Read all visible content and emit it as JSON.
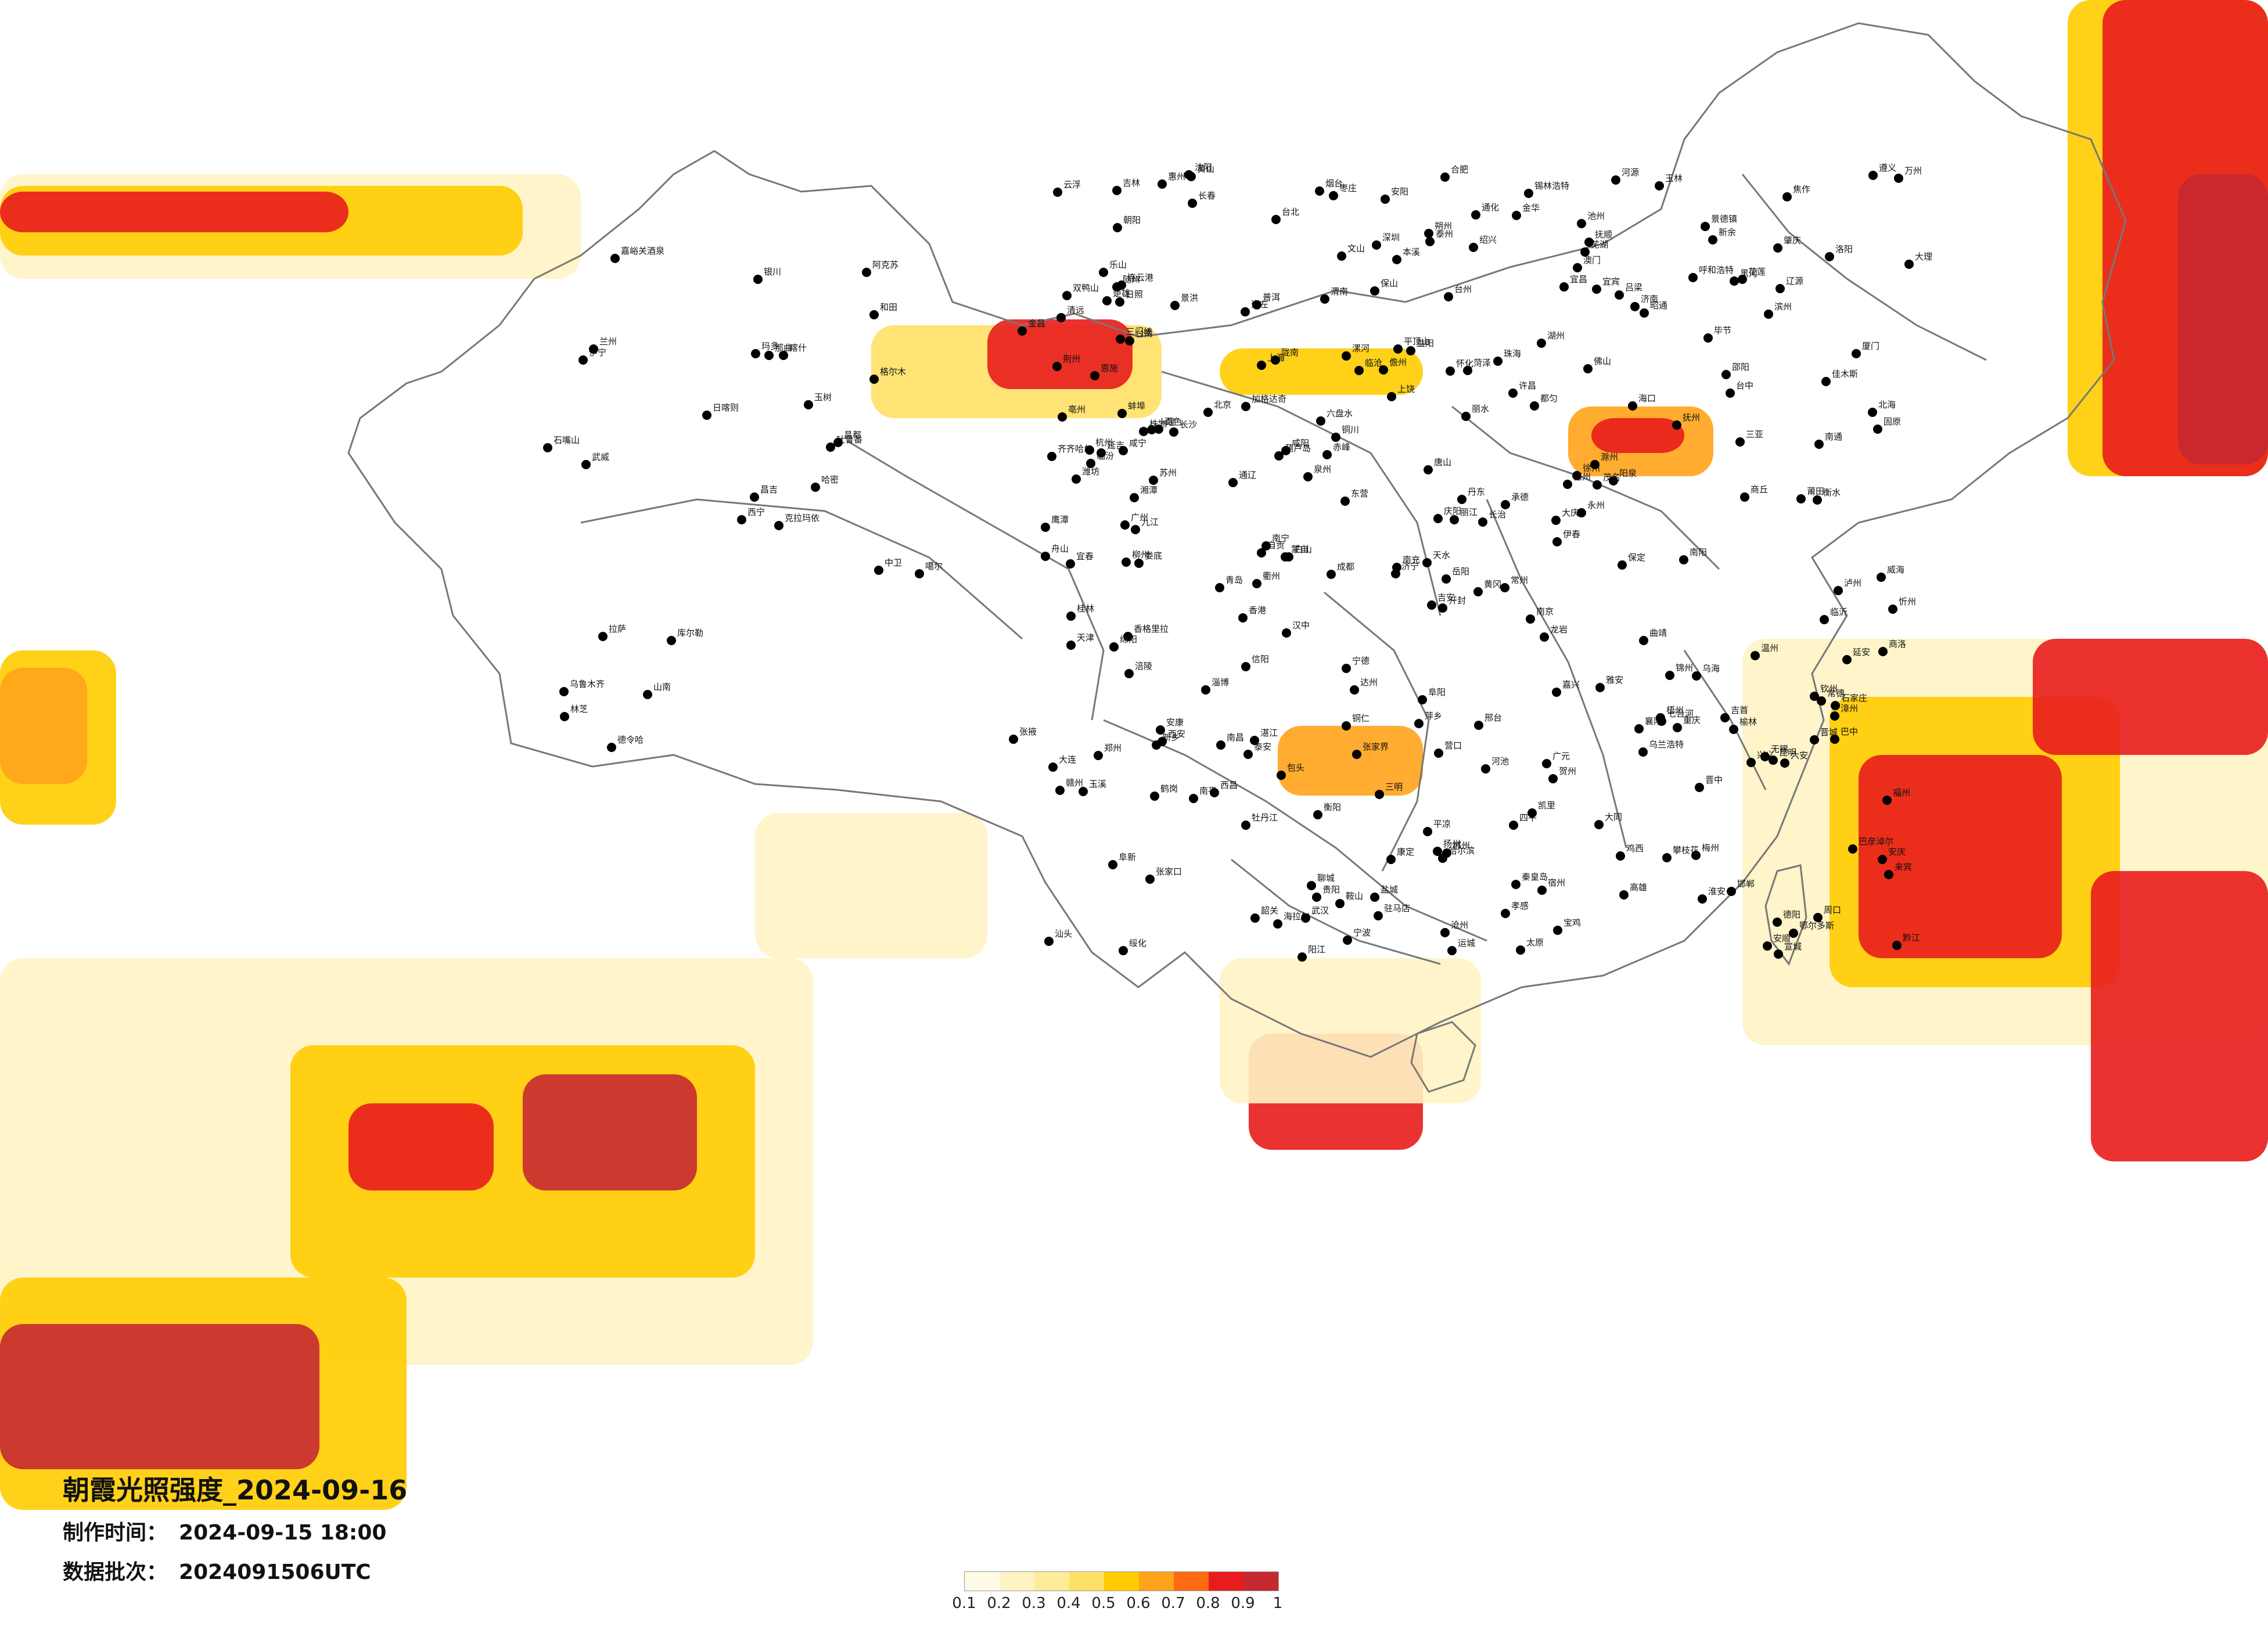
{
  "title": "朝霞光照强度_2024-09-16",
  "meta": {
    "made_label": "制作时间：",
    "made_value": "2024-09-15 18:00",
    "batch_label": "数据批次：",
    "batch_value": "2024091506UTC"
  },
  "legend": {
    "colors": [
      "#fffbe6",
      "#fff3c4",
      "#ffec99",
      "#ffe066",
      "#ffcc00",
      "#ffa31a",
      "#ff6a13",
      "#e81c1c",
      "#c62832"
    ],
    "ticks": [
      "0.1",
      "0.2",
      "0.3",
      "0.4",
      "0.5",
      "0.6",
      "0.7",
      "0.8",
      "0.9",
      "1"
    ]
  },
  "cities": [
    {
      "name": "克拉玛依"
    },
    {
      "name": "伊宁"
    },
    {
      "name": "昌吉"
    },
    {
      "name": "乌鲁木齐"
    },
    {
      "name": "吐鲁番"
    },
    {
      "name": "库尔勒"
    },
    {
      "name": "阿克苏"
    },
    {
      "name": "喀什"
    },
    {
      "name": "和田"
    },
    {
      "name": "哈密"
    },
    {
      "name": "嘉峪关酒泉"
    },
    {
      "name": "张掖"
    },
    {
      "name": "武威"
    },
    {
      "name": "金昌"
    },
    {
      "name": "西宁"
    },
    {
      "name": "格尔木"
    },
    {
      "name": "德令哈"
    },
    {
      "name": "玛多"
    },
    {
      "name": "玉树"
    },
    {
      "name": "拉萨"
    },
    {
      "name": "日喀则"
    },
    {
      "name": "林芝"
    },
    {
      "name": "山南"
    },
    {
      "name": "那曲"
    },
    {
      "name": "昌都"
    },
    {
      "name": "噶尔"
    },
    {
      "name": "兰州"
    },
    {
      "name": "银川"
    },
    {
      "name": "石嘴山"
    },
    {
      "name": "中卫"
    },
    {
      "name": "固原"
    },
    {
      "name": "天水"
    },
    {
      "name": "平凉"
    },
    {
      "name": "庆阳"
    },
    {
      "name": "陇南"
    },
    {
      "name": "呼和浩特"
    },
    {
      "name": "包头"
    },
    {
      "name": "鄂尔多斯"
    },
    {
      "name": "巴彦淖尔"
    },
    {
      "name": "乌海"
    },
    {
      "name": "锡林浩特"
    },
    {
      "name": "赤峰"
    },
    {
      "name": "通辽"
    },
    {
      "name": "乌兰浩特"
    },
    {
      "name": "海拉尔"
    },
    {
      "name": "齐齐哈尔"
    },
    {
      "name": "大庆"
    },
    {
      "name": "绥化"
    },
    {
      "name": "哈尔滨"
    },
    {
      "name": "伊春"
    },
    {
      "name": "鹤岗"
    },
    {
      "name": "佳木斯"
    },
    {
      "name": "双鸭山"
    },
    {
      "name": "七台河"
    },
    {
      "name": "鸡西"
    },
    {
      "name": "牡丹江"
    },
    {
      "name": "长春"
    },
    {
      "name": "吉林"
    },
    {
      "name": "四平"
    },
    {
      "name": "辽源"
    },
    {
      "name": "通化"
    },
    {
      "name": "白山"
    },
    {
      "name": "延吉"
    },
    {
      "name": "加格达奇"
    },
    {
      "name": "黑河"
    },
    {
      "name": "沈阳"
    },
    {
      "name": "抚顺"
    },
    {
      "name": "本溪"
    },
    {
      "name": "丹东"
    },
    {
      "name": "大连"
    },
    {
      "name": "营口"
    },
    {
      "name": "鞍山"
    },
    {
      "name": "锦州"
    },
    {
      "name": "葫芦岛"
    },
    {
      "name": "阜新"
    },
    {
      "name": "朝阳"
    },
    {
      "name": "北京"
    },
    {
      "name": "天津"
    },
    {
      "name": "唐山"
    },
    {
      "name": "秦皇岛"
    },
    {
      "name": "承德"
    },
    {
      "name": "张家口"
    },
    {
      "name": "保定"
    },
    {
      "name": "石家庄"
    },
    {
      "name": "沧州"
    },
    {
      "name": "衡水"
    },
    {
      "name": "邢台"
    },
    {
      "name": "邯郸"
    },
    {
      "name": "太原"
    },
    {
      "name": "大同"
    },
    {
      "name": "朔州"
    },
    {
      "name": "忻州"
    },
    {
      "name": "阳泉"
    },
    {
      "name": "晋中"
    },
    {
      "name": "长治"
    },
    {
      "name": "晋城"
    },
    {
      "name": "临汾"
    },
    {
      "name": "运城"
    },
    {
      "name": "吕梁"
    },
    {
      "name": "济南"
    },
    {
      "name": "青岛"
    },
    {
      "name": "烟台"
    },
    {
      "name": "威海"
    },
    {
      "name": "潍坊"
    },
    {
      "name": "淄博"
    },
    {
      "name": "泰安"
    },
    {
      "name": "聊城"
    },
    {
      "name": "德州"
    },
    {
      "name": "滨州"
    },
    {
      "name": "东营"
    },
    {
      "name": "临沂"
    },
    {
      "name": "日照"
    },
    {
      "name": "菏泽"
    },
    {
      "name": "济宁"
    },
    {
      "name": "枣庄"
    },
    {
      "name": "郑州"
    },
    {
      "name": "开封"
    },
    {
      "name": "洛阳"
    },
    {
      "name": "平顶山"
    },
    {
      "name": "安阳"
    },
    {
      "name": "新乡"
    },
    {
      "name": "焦作"
    },
    {
      "name": "许昌"
    },
    {
      "name": "漯河"
    },
    {
      "name": "南阳"
    },
    {
      "name": "信阳"
    },
    {
      "name": "周口"
    },
    {
      "name": "驻马店"
    },
    {
      "name": "商丘"
    },
    {
      "name": "三门峡"
    },
    {
      "name": "西安"
    },
    {
      "name": "宝鸡"
    },
    {
      "name": "咸阳"
    },
    {
      "name": "渭南"
    },
    {
      "name": "延安"
    },
    {
      "name": "榆林"
    },
    {
      "name": "汉中"
    },
    {
      "name": "安康"
    },
    {
      "name": "商洛"
    },
    {
      "name": "铜川"
    },
    {
      "name": "南京"
    },
    {
      "name": "苏州"
    },
    {
      "name": "无锡"
    },
    {
      "name": "常州"
    },
    {
      "name": "徐州"
    },
    {
      "name": "连云港"
    },
    {
      "name": "盐城"
    },
    {
      "name": "淮安"
    },
    {
      "name": "扬州"
    },
    {
      "name": "泰州"
    },
    {
      "name": "南通"
    },
    {
      "name": "上海"
    },
    {
      "name": "杭州"
    },
    {
      "name": "宁波"
    },
    {
      "name": "温州"
    },
    {
      "name": "金华"
    },
    {
      "name": "台州"
    },
    {
      "name": "丽水"
    },
    {
      "name": "衢州"
    },
    {
      "name": "湖州"
    },
    {
      "name": "嘉兴"
    },
    {
      "name": "绍兴"
    },
    {
      "name": "舟山"
    },
    {
      "name": "合肥"
    },
    {
      "name": "芜湖"
    },
    {
      "name": "蚌埠"
    },
    {
      "name": "阜阳"
    },
    {
      "name": "安庆"
    },
    {
      "name": "黄山"
    },
    {
      "name": "宣城"
    },
    {
      "name": "六安"
    },
    {
      "name": "宿州"
    },
    {
      "name": "亳州"
    },
    {
      "name": "池州"
    },
    {
      "name": "滁州"
    },
    {
      "name": "武汉"
    },
    {
      "name": "宜昌"
    },
    {
      "name": "襄阳"
    },
    {
      "name": "荆州"
    },
    {
      "name": "十堰"
    },
    {
      "name": "恩施"
    },
    {
      "name": "黄冈"
    },
    {
      "name": "孝感"
    },
    {
      "name": "咸宁"
    },
    {
      "name": "随州"
    },
    {
      "name": "长沙"
    },
    {
      "name": "株洲"
    },
    {
      "name": "湘潭"
    },
    {
      "name": "衡阳"
    },
    {
      "name": "岳阳"
    },
    {
      "name": "常德"
    },
    {
      "name": "张家界"
    },
    {
      "name": "怀化"
    },
    {
      "name": "邵阳"
    },
    {
      "name": "永州"
    },
    {
      "name": "郴州"
    },
    {
      "name": "娄底"
    },
    {
      "name": "益阳"
    },
    {
      "name": "吉首"
    },
    {
      "name": "南昌"
    },
    {
      "name": "九江"
    },
    {
      "name": "景德镇"
    },
    {
      "name": "上饶"
    },
    {
      "name": "鹰潭"
    },
    {
      "name": "抚州"
    },
    {
      "name": "宜春"
    },
    {
      "name": "吉安"
    },
    {
      "name": "赣州"
    },
    {
      "name": "萍乡"
    },
    {
      "name": "新余"
    },
    {
      "name": "福州"
    },
    {
      "name": "厦门"
    },
    {
      "name": "泉州"
    },
    {
      "name": "漳州"
    },
    {
      "name": "莆田"
    },
    {
      "name": "三明"
    },
    {
      "name": "南平"
    },
    {
      "name": "龙岩"
    },
    {
      "name": "宁德"
    },
    {
      "name": "广州"
    },
    {
      "name": "深圳"
    },
    {
      "name": "珠海"
    },
    {
      "name": "汕头"
    },
    {
      "name": "佛山"
    },
    {
      "name": "韶关"
    },
    {
      "name": "湛江"
    },
    {
      "name": "茂名"
    },
    {
      "name": "肇庆"
    },
    {
      "name": "惠州"
    },
    {
      "name": "梅州"
    },
    {
      "name": "河源"
    },
    {
      "name": "清远"
    },
    {
      "name": "阳江"
    },
    {
      "name": "云浮"
    },
    {
      "name": "香港"
    },
    {
      "name": "澳门"
    },
    {
      "name": "南宁"
    },
    {
      "name": "柳州"
    },
    {
      "name": "桂林"
    },
    {
      "name": "梧州"
    },
    {
      "name": "北海"
    },
    {
      "name": "钦州"
    },
    {
      "name": "玉林"
    },
    {
      "name": "百色"
    },
    {
      "name": "河池"
    },
    {
      "name": "贺州"
    },
    {
      "name": "来宾"
    },
    {
      "name": "崇左"
    },
    {
      "name": "海口"
    },
    {
      "name": "三亚"
    },
    {
      "name": "儋州"
    },
    {
      "name": "贵阳"
    },
    {
      "name": "遵义"
    },
    {
      "name": "六盘水"
    },
    {
      "name": "安顺"
    },
    {
      "name": "毕节"
    },
    {
      "name": "铜仁"
    },
    {
      "name": "凯里"
    },
    {
      "name": "都匀"
    },
    {
      "name": "兴义"
    },
    {
      "name": "昆明"
    },
    {
      "name": "曲靖"
    },
    {
      "name": "玉溪"
    },
    {
      "name": "大理"
    },
    {
      "name": "丽江"
    },
    {
      "name": "保山"
    },
    {
      "name": "临沧"
    },
    {
      "name": "普洱"
    },
    {
      "name": "景洪"
    },
    {
      "name": "蒙自"
    },
    {
      "name": "文山"
    },
    {
      "name": "昭通"
    },
    {
      "name": "楚雄"
    },
    {
      "name": "香格里拉"
    },
    {
      "name": "成都"
    },
    {
      "name": "绵阳"
    },
    {
      "name": "德阳"
    },
    {
      "name": "南充"
    },
    {
      "name": "宜宾"
    },
    {
      "name": "泸州"
    },
    {
      "name": "自贡"
    },
    {
      "name": "乐山"
    },
    {
      "name": "雅安"
    },
    {
      "name": "西昌"
    },
    {
      "name": "攀枝花"
    },
    {
      "name": "达州"
    },
    {
      "name": "广元"
    },
    {
      "name": "巴中"
    },
    {
      "name": "康定"
    },
    {
      "name": "重庆"
    },
    {
      "name": "万州"
    },
    {
      "name": "涪陵"
    },
    {
      "name": "黔江"
    },
    {
      "name": "台北"
    },
    {
      "name": "台中"
    },
    {
      "name": "高雄"
    },
    {
      "name": "台南"
    },
    {
      "name": "花莲"
    }
  ]
}
